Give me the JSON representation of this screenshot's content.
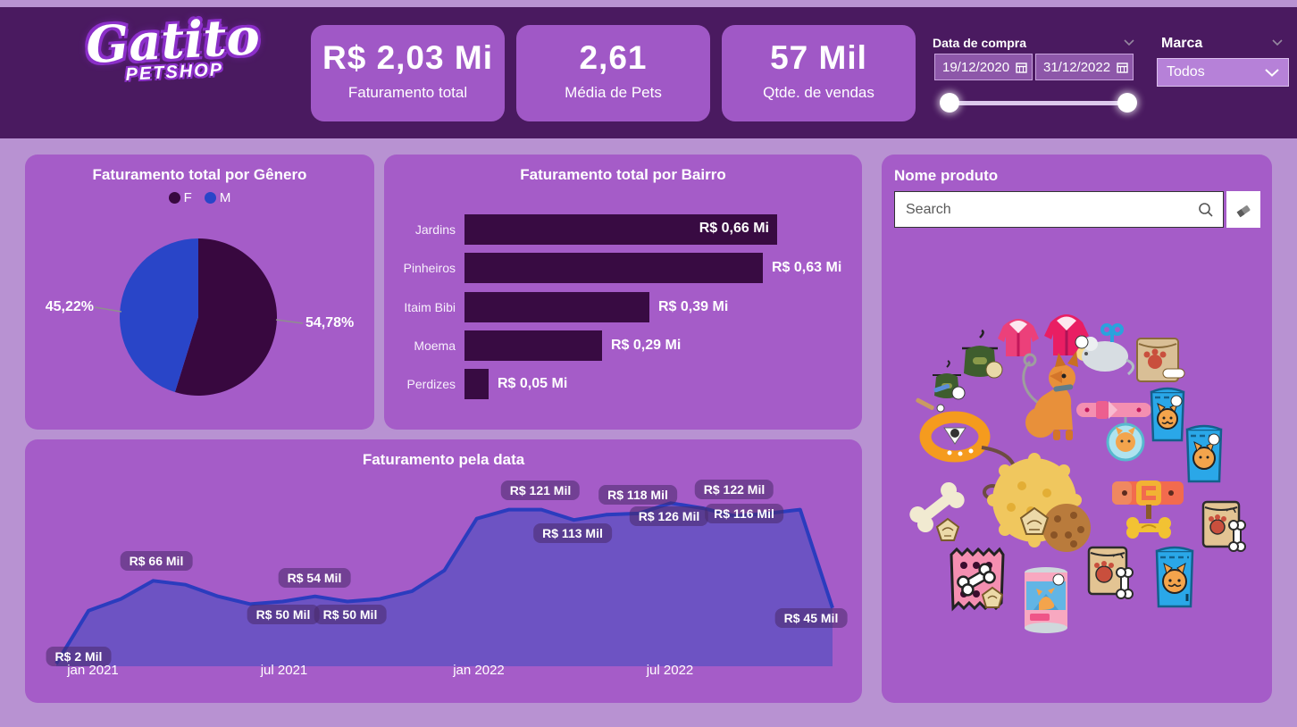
{
  "header": {
    "logo": {
      "brand": "Gatito",
      "sub": "PETSHOP"
    },
    "kpis": [
      {
        "value": "R$ 2,03 Mi",
        "label": "Faturamento total"
      },
      {
        "value": "2,61",
        "label": "Média de Pets"
      },
      {
        "value": "57 Mil",
        "label": "Qtde. de vendas"
      }
    ],
    "date_slicer": {
      "label": "Data de compra",
      "start": "19/12/2020",
      "end": "31/12/2022"
    },
    "brand_slicer": {
      "label": "Marca",
      "selected": "Todos"
    }
  },
  "product_panel": {
    "title": "Nome produto",
    "search_placeholder": "Search",
    "icons": [
      "pet-coat-pink",
      "pet-coat-red",
      "wind-up-mouse-toy",
      "pet-jacket-green-hanger",
      "pet-jacket-green-hanger-small",
      "cat-toy-sticks",
      "treat-pack-brown",
      "dog-with-leash",
      "pink-collar-with-cat-tag",
      "kibble-bag-blue",
      "kibble-bag-blue-2",
      "orange-collar-with-leash",
      "yellow-spiky-ball",
      "dog-cookie",
      "bone-white",
      "red-collar-with-buckle",
      "bone-tag-yellow",
      "treat-bag-tan",
      "pink-treat-packet",
      "cat-food-can",
      "treat-bag-tan-2",
      "kibble-bag-blue-cat"
    ]
  },
  "colors": {
    "page_bg": "#b892d2",
    "header_bg": "#4a1a60",
    "panel_bg": "#a55cc8",
    "card_bg": "#a058c6",
    "pie_f": "#38083f",
    "pie_m": "#2945c8",
    "bar_fill": "#380b42",
    "line_stroke": "#2b3cbe",
    "area_fill": "#6d53c3"
  },
  "chart_data": [
    {
      "type": "pie",
      "title": "Faturamento total por Gênero",
      "legend_position": "top",
      "slices": [
        {
          "label": "F",
          "value": 54.78,
          "pct_text": "54,78%",
          "color": "#38083f"
        },
        {
          "label": "M",
          "value": 45.22,
          "pct_text": "45,22%",
          "color": "#2945c8"
        }
      ]
    },
    {
      "type": "bar",
      "title": "Faturamento total por Bairro",
      "orientation": "horizontal",
      "categories": [
        "Jardins",
        "Pinheiros",
        "Itaim Bibi",
        "Moema",
        "Perdizes"
      ],
      "values": [
        0.66,
        0.63,
        0.39,
        0.29,
        0.05
      ],
      "labels": [
        "R$ 0,66 Mi",
        "R$ 0,63 Mi",
        "R$ 0,39 Mi",
        "R$ 0,29 Mi",
        "R$ 0,05 Mi"
      ],
      "unit": "R$ Mi",
      "xlim": [
        0,
        0.7
      ]
    },
    {
      "type": "area",
      "title": "Faturamento pela data",
      "xlabel": "",
      "ylabel": "",
      "unit": "R$ Mil",
      "x_ticks": [
        "jan 2021",
        "jul 2021",
        "jan 2022",
        "jul 2022"
      ],
      "series": {
        "name": "Faturamento",
        "months": [
          "dez 2020",
          "jan 2021",
          "fev 2021",
          "mar 2021",
          "abr 2021",
          "mai 2021",
          "jun 2021",
          "jul 2021",
          "ago 2021",
          "set 2021",
          "out 2021",
          "nov 2021",
          "dez 2021",
          "jan 2022",
          "fev 2022",
          "mar 2022",
          "abr 2022",
          "mai 2022",
          "jun 2022",
          "jul 2022",
          "ago 2022",
          "set 2022",
          "out 2022",
          "nov 2022",
          "dez 2022"
        ],
        "values": [
          2,
          43,
          52,
          66,
          63,
          54,
          48,
          50,
          54,
          50,
          52,
          58,
          74,
          114,
          121,
          121,
          113,
          117,
          118,
          126,
          122,
          116,
          118,
          121,
          45
        ]
      },
      "data_labels": [
        {
          "text": "R$ 2 Mil",
          "month": "dez 2020"
        },
        {
          "text": "R$ 66 Mil",
          "month": "mar 2021"
        },
        {
          "text": "R$ 50 Mil",
          "month": "jul 2021"
        },
        {
          "text": "R$ 54 Mil",
          "month": "ago 2021"
        },
        {
          "text": "R$ 50 Mil",
          "month": "set 2021"
        },
        {
          "text": "R$ 121 Mil",
          "month": "mar 2022"
        },
        {
          "text": "R$ 113 Mil",
          "month": "abr 2022"
        },
        {
          "text": "R$ 118 Mil",
          "month": "jun 2022"
        },
        {
          "text": "R$ 126 Mil",
          "month": "jul 2022"
        },
        {
          "text": "R$ 122 Mil",
          "month": "ago 2022"
        },
        {
          "text": "R$ 116 Mil",
          "month": "set 2022"
        },
        {
          "text": "R$ 45 Mil",
          "month": "dez 2022"
        }
      ],
      "ylim": [
        0,
        140
      ]
    }
  ]
}
